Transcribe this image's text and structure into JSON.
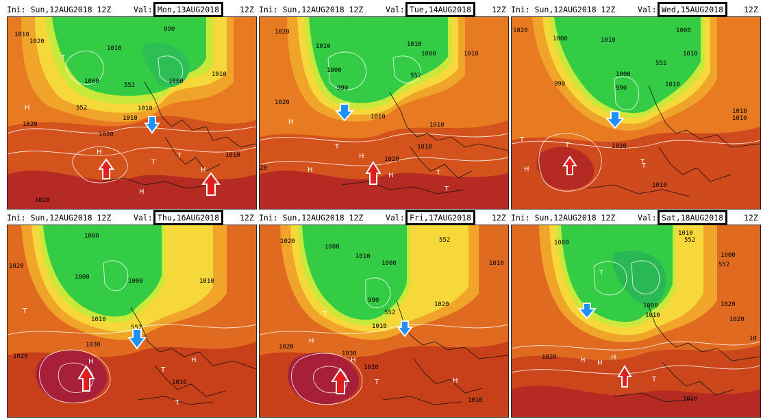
{
  "panels": [
    {
      "init": "Ini: Sun,12AUG2018 12Z",
      "val_label": "Val:",
      "valid": "Mon,13AUG2018",
      "hour": "12Z",
      "contours": [
        "1010",
        "1020",
        "990",
        "1010",
        "1000",
        "552",
        "1010",
        "1010",
        "1010",
        "1020",
        "1020",
        "1010",
        "1020",
        "1000",
        "552"
      ],
      "symbols": [
        "H",
        "H",
        "H",
        "T",
        "T",
        "H",
        "T"
      ],
      "arrows": [
        {
          "dir": "down",
          "color": "#1e90ff"
        },
        {
          "dir": "up",
          "color": "#e02020"
        },
        {
          "dir": "up",
          "color": "#e02020"
        }
      ]
    },
    {
      "init": "Ini: Sun,12AUG2018 12Z",
      "val_label": "Val:",
      "valid": "Tue,14AUG2018",
      "hour": "12Z",
      "contours": [
        "1020",
        "1000",
        "1010",
        "990",
        "1010",
        "1000",
        "552",
        "1010",
        "1020",
        "1010",
        "1010",
        "1020",
        "1010",
        "20"
      ],
      "symbols": [
        "H",
        "T",
        "H",
        "H",
        "H",
        "T",
        "T"
      ],
      "arrows": [
        {
          "dir": "down",
          "color": "#1e90ff"
        },
        {
          "dir": "up",
          "color": "#e02020"
        }
      ]
    },
    {
      "init": "Ini: Sun,12AUG2018 12Z",
      "val_label": "Val:",
      "valid": "Wed,15AUG2018",
      "hour": "12Z",
      "contours": [
        "1020",
        "1000",
        "990",
        "1000",
        "1010",
        "1010",
        "552",
        "1000",
        "990",
        "1010",
        "1020",
        "1010",
        "1010",
        "1010"
      ],
      "symbols": [
        "T",
        "T",
        "T",
        "H",
        "T"
      ],
      "arrows": [
        {
          "dir": "down",
          "color": "#1e90ff"
        },
        {
          "dir": "up",
          "color": "#e02020"
        }
      ]
    },
    {
      "init": "Ini: Sun,12AUG2018 12Z",
      "val_label": "Val:",
      "valid": "Thu,16AUG2018",
      "hour": "12Z",
      "contours": [
        "1000",
        "1020",
        "1000",
        "1000",
        "1010",
        "1010",
        "552",
        "1030",
        "1020",
        "1010"
      ],
      "symbols": [
        "T",
        "H",
        "T",
        "H",
        "T"
      ],
      "arrows": [
        {
          "dir": "down",
          "color": "#1e90ff"
        },
        {
          "dir": "up",
          "color": "#e02020"
        }
      ]
    },
    {
      "init": "Ini: Sun,12AUG2018 12Z",
      "val_label": "Val:",
      "valid": "Fri,17AUG2018",
      "hour": "12Z",
      "contours": [
        "1020",
        "1000",
        "1010",
        "1000",
        "552",
        "1010",
        "990",
        "1020",
        "552",
        "1010",
        "1020",
        "1030",
        "1020",
        "1010"
      ],
      "symbols": [
        "H",
        "T",
        "H",
        "H",
        "T"
      ],
      "arrows": [
        {
          "dir": "down",
          "color": "#1e90ff"
        },
        {
          "dir": "up",
          "color": "#e02020"
        }
      ]
    },
    {
      "init": "Ini: Sun,12AUG2018 12Z",
      "val_label": "Val:",
      "valid": "Sat,18AUG2018",
      "hour": "12Z",
      "contours": [
        "1000",
        "1010",
        "552",
        "1000",
        "552",
        "1000",
        "1010",
        "1020",
        "1020",
        "1020",
        "1010",
        "10"
      ],
      "symbols": [
        "T",
        "H",
        "H",
        "H",
        "H",
        "T"
      ],
      "arrows": [
        {
          "dir": "down",
          "color": "#1e90ff"
        },
        {
          "dir": "up",
          "color": "#e02020"
        }
      ]
    }
  ]
}
